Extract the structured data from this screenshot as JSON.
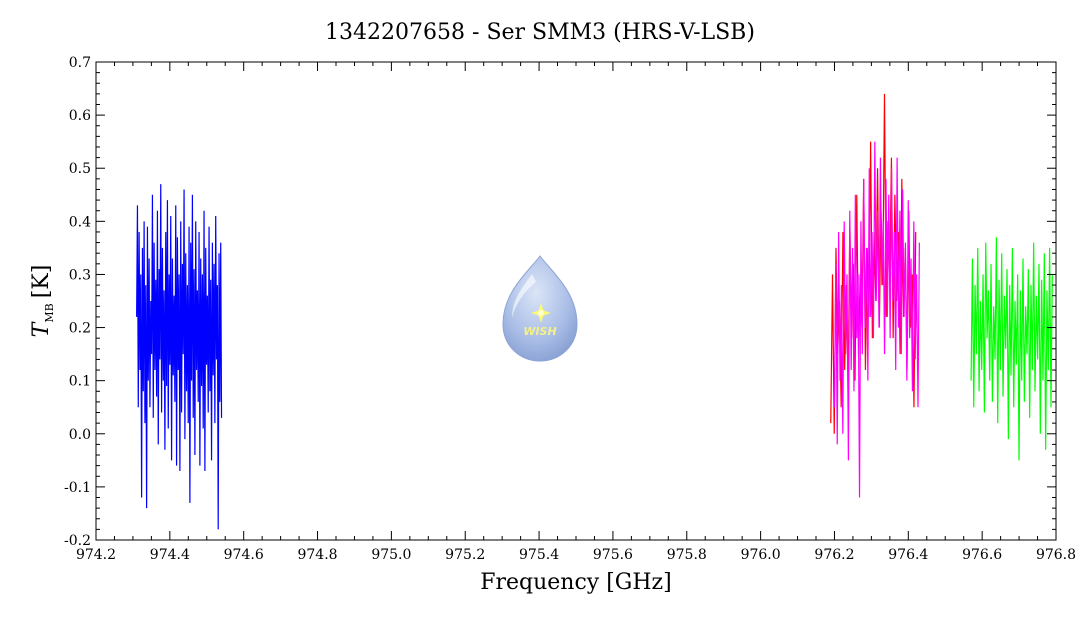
{
  "chart_data": {
    "type": "line",
    "title": "1342207658 - Ser SMM3 (HRS-V-LSB)",
    "xlabel": "Frequency [GHz]",
    "ylabel_main": "T",
    "ylabel_sub": "MB",
    "ylabel_unit": "[K]",
    "xlim": [
      974.2,
      976.8
    ],
    "ylim": [
      -0.2,
      0.7
    ],
    "x_ticks": [
      "974.2",
      "974.4",
      "974.6",
      "974.8",
      "975.0",
      "975.2",
      "975.4",
      "975.6",
      "975.8",
      "976.0",
      "976.2",
      "976.4",
      "976.6",
      "976.8"
    ],
    "y_ticks": [
      "-0.2",
      "-0.1",
      "0.0",
      "0.1",
      "0.2",
      "0.3",
      "0.4",
      "0.5",
      "0.6",
      "0.7"
    ],
    "grid": false,
    "logo_text": "WISH",
    "series": [
      {
        "color": "#0000ff",
        "x_start": 974.31,
        "x_end": 974.54,
        "values": [
          0.22,
          0.43,
          0.05,
          0.38,
          0.12,
          0.3,
          -0.12,
          0.35,
          0.08,
          0.4,
          0.02,
          0.28,
          -0.14,
          0.39,
          0.1,
          0.33,
          0.05,
          0.25,
          0.15,
          0.45,
          0.03,
          0.36,
          0.12,
          0.29,
          0.07,
          0.42,
          -0.02,
          0.31,
          0.14,
          0.47,
          0.04,
          0.35,
          0.1,
          0.27,
          -0.03,
          0.38,
          0.09,
          0.44,
          0.01,
          0.3,
          0.13,
          0.41,
          -0.05,
          0.33,
          0.11,
          0.26,
          0.06,
          0.43,
          -0.06,
          0.37,
          0.12,
          0.3,
          -0.07,
          0.4,
          0.04,
          0.32,
          0.15,
          0.46,
          -0.01,
          0.34,
          0.08,
          0.28,
          0.02,
          0.39,
          -0.13,
          0.36,
          0.1,
          0.45,
          0.03,
          0.31,
          -0.04,
          0.4,
          0.12,
          0.27,
          0.06,
          0.38,
          -0.06,
          0.33,
          0.09,
          0.3,
          0.01,
          0.42,
          -0.07,
          0.35,
          0.13,
          0.26,
          0.04,
          0.39,
          0.08,
          0.29,
          -0.05,
          0.36,
          0.11,
          0.32,
          0.02,
          0.41,
          0.14,
          0.28,
          -0.18,
          0.34,
          0.06,
          0.36,
          0.03
        ]
      },
      {
        "color": "#ff0000",
        "x_start": 976.19,
        "x_end": 976.42,
        "values": [
          0.02,
          0.3,
          0.0,
          0.35,
          0.15,
          0.25,
          0.05,
          0.38,
          0.12,
          0.28,
          0.08,
          0.4,
          0.18,
          0.32,
          0.1,
          0.45,
          0.15,
          0.3,
          0.2,
          0.48,
          0.12,
          0.35,
          0.22,
          0.55,
          0.18,
          0.38,
          0.25,
          0.5,
          0.2,
          0.42,
          0.28,
          0.64,
          0.22,
          0.4,
          0.3,
          0.52,
          0.18,
          0.45,
          0.25,
          0.38,
          0.15,
          0.48,
          0.22,
          0.35,
          0.12,
          0.42,
          0.2,
          0.3,
          0.05,
          0.38
        ]
      },
      {
        "color": "#ff00ff",
        "x_start": 976.2,
        "x_end": 976.43,
        "values": [
          0.05,
          0.32,
          -0.02,
          0.38,
          0.1,
          0.28,
          0.0,
          0.4,
          0.15,
          0.3,
          -0.05,
          0.42,
          0.12,
          0.35,
          0.08,
          0.45,
          0.18,
          0.3,
          -0.12,
          0.4,
          0.15,
          0.48,
          0.2,
          0.35,
          0.1,
          0.5,
          0.22,
          0.38,
          0.18,
          0.55,
          0.25,
          0.42,
          0.2,
          0.52,
          0.28,
          0.4,
          0.15,
          0.48,
          0.22,
          0.45,
          0.18,
          0.5,
          0.25,
          0.38,
          0.12,
          0.52,
          0.2,
          0.42,
          0.15,
          0.46,
          0.22,
          0.36,
          0.1,
          0.44,
          0.18,
          0.33,
          0.08,
          0.4,
          0.14,
          0.3,
          0.05,
          0.36
        ]
      },
      {
        "color": "#00ff00",
        "x_start": 976.57,
        "x_end": 976.79,
        "values": [
          0.1,
          0.33,
          0.05,
          0.28,
          0.15,
          0.35,
          0.08,
          0.25,
          0.12,
          0.3,
          0.04,
          0.36,
          0.18,
          0.27,
          0.1,
          0.32,
          0.06,
          0.24,
          0.14,
          0.37,
          0.02,
          0.29,
          0.12,
          0.34,
          0.07,
          0.26,
          0.16,
          0.31,
          -0.01,
          0.28,
          0.11,
          0.35,
          0.05,
          0.25,
          0.13,
          0.3,
          -0.05,
          0.27,
          0.1,
          0.33,
          0.06,
          0.24,
          0.15,
          0.31,
          0.03,
          0.28,
          0.12,
          0.36,
          0.08,
          0.26,
          0.14,
          0.32,
          0.0,
          0.29,
          0.1,
          0.34,
          -0.03,
          0.27,
          0.12,
          0.35,
          0.05,
          0.3
        ]
      }
    ]
  }
}
